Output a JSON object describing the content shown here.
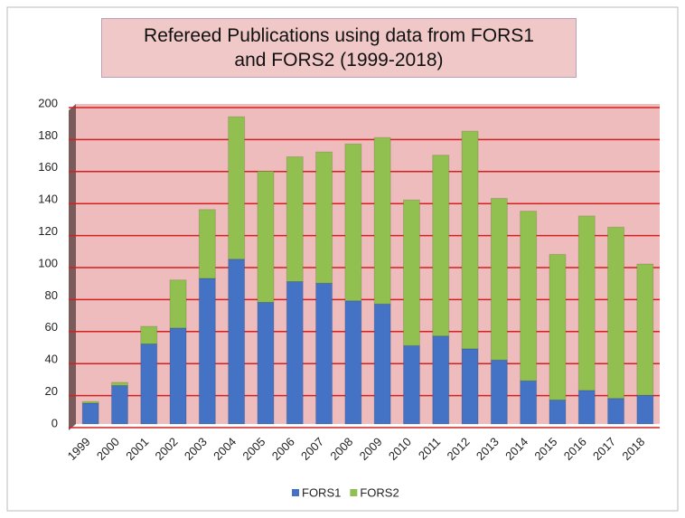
{
  "chart_data": {
    "type": "stacked_bar",
    "title": "Refereed Publications using data from FORS1 and FORS2 (1999-2018)",
    "categories": [
      "1999",
      "2000",
      "2001",
      "2002",
      "2003",
      "2004",
      "2005",
      "2006",
      "2007",
      "2008",
      "2009",
      "2010",
      "2011",
      "2012",
      "2013",
      "2014",
      "2015",
      "2016",
      "2017",
      "2018"
    ],
    "series": [
      {
        "name": "FORS1",
        "color": "#4472c4",
        "values": [
          13,
          24,
          50,
          60,
          91,
          103,
          76,
          89,
          88,
          77,
          75,
          49,
          55,
          47,
          40,
          27,
          15,
          21,
          16,
          18
        ]
      },
      {
        "name": "FORS2",
        "color": "#92c050",
        "values": [
          1,
          2,
          11,
          30,
          43,
          89,
          82,
          78,
          82,
          98,
          104,
          91,
          113,
          136,
          101,
          106,
          91,
          109,
          107,
          82
        ]
      }
    ],
    "ylim": [
      0,
      200
    ],
    "yticks": [
      0,
      20,
      40,
      60,
      80,
      100,
      120,
      140,
      160,
      180,
      200
    ],
    "grid": true,
    "legend": "bottom"
  }
}
